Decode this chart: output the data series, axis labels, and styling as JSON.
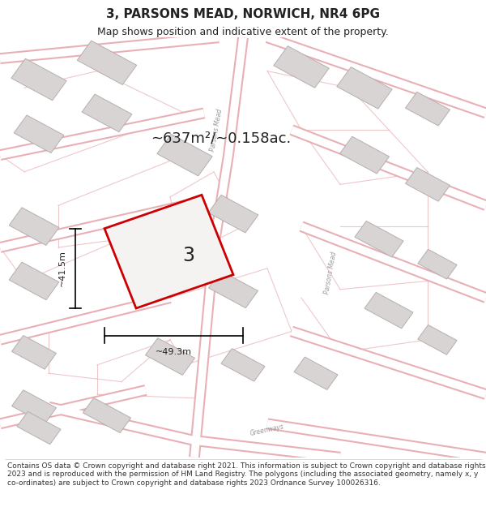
{
  "title": "3, PARSONS MEAD, NORWICH, NR4 6PG",
  "subtitle": "Map shows position and indicative extent of the property.",
  "footer": "Contains OS data © Crown copyright and database right 2021. This information is subject to Crown copyright and database rights 2023 and is reproduced with the permission of HM Land Registry. The polygons (including the associated geometry, namely x, y co-ordinates) are subject to Crown copyright and database rights 2023 Ordnance Survey 100026316.",
  "map_bg": "#f5f2f2",
  "area_text": "~637m²/~0.158ac.",
  "width_label": "~49.3m",
  "height_label": "~41.5m",
  "plot_number": "3",
  "road_color": "#e8b0b5",
  "road_fill": "#ffffff",
  "building_face": "#d9d4d4",
  "building_edge": "#b5afaf",
  "plot_fill": "#f5f2f2",
  "plot_edge": "#cc0000",
  "text_color": "#222222",
  "road_label_color": "#999999",
  "title_fontsize": 11,
  "subtitle_fontsize": 9,
  "footer_fontsize": 6.5,
  "map_road_lw_outer": 10,
  "map_road_lw_inner": 7
}
